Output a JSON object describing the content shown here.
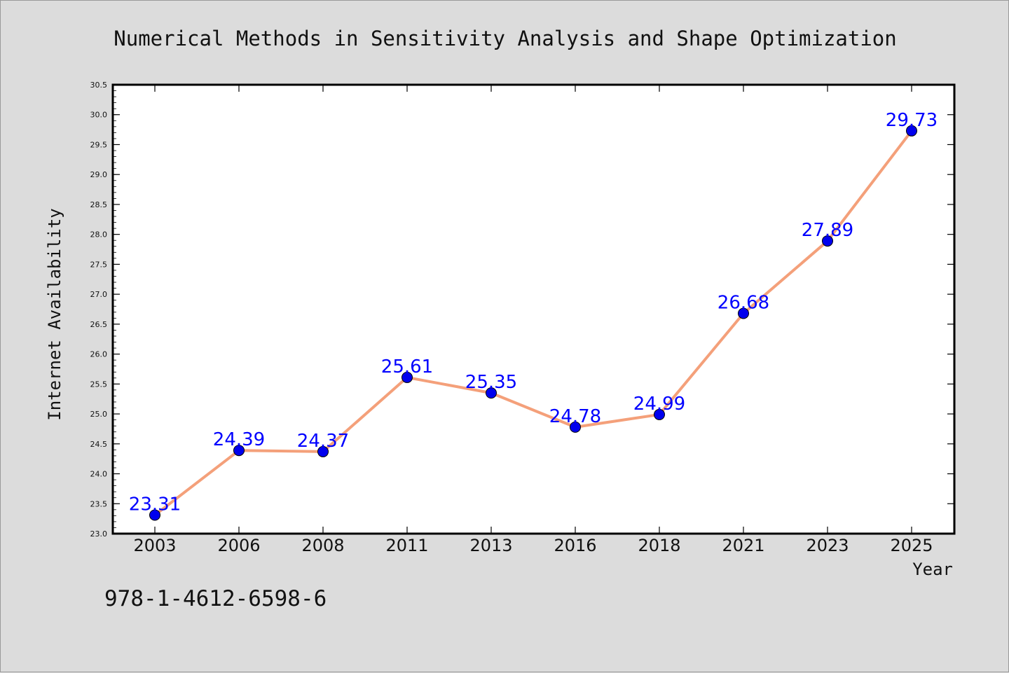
{
  "chart_data": {
    "type": "line",
    "title": "Numerical Methods in Sensitivity Analysis and Shape Optimization",
    "xlabel": "Year",
    "ylabel": "Internet Availability",
    "categories": [
      "2003",
      "2006",
      "2008",
      "2011",
      "2013",
      "2016",
      "2018",
      "2021",
      "2023",
      "2025"
    ],
    "series": [
      {
        "values": [
          23.31,
          24.39,
          24.37,
          25.61,
          25.35,
          24.78,
          24.99,
          26.68,
          27.89,
          29.73
        ],
        "labels": [
          "23.31",
          "24.39",
          "24.37",
          "25.61",
          "25.35",
          "24.78",
          "24.99",
          "26.68",
          "27.89",
          "29.73"
        ],
        "line_color": "#f4a07a",
        "marker_color": "#0000ee"
      }
    ],
    "ylim": [
      23.0,
      30.5
    ],
    "yticks": [
      "23.0",
      "23.5",
      "24.0",
      "24.5",
      "25.0",
      "25.5",
      "26.0",
      "26.5",
      "27.0",
      "27.5",
      "28.0",
      "28.5",
      "29.0",
      "29.5",
      "30.0",
      "30.5"
    ],
    "grid": false,
    "legend": "none"
  },
  "annotation": "978-1-4612-6598-6",
  "colors": {
    "background": "#dcdcdc",
    "plot_background": "#ffffff",
    "data_label": "#0000ff"
  }
}
